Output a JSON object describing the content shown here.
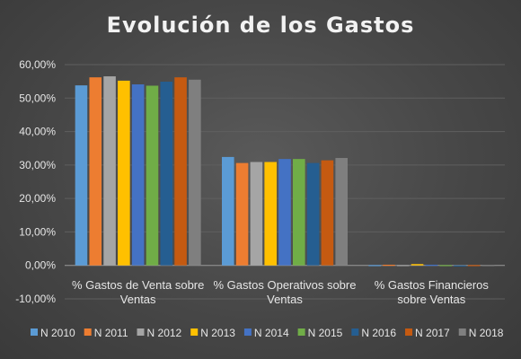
{
  "chart_data": {
    "type": "bar",
    "title": "Evolución de los Gastos",
    "xlabel": "",
    "ylabel": "",
    "ylim": [
      -0.1,
      0.6
    ],
    "y_ticks": [
      "-10,00%",
      "0,00%",
      "10,00%",
      "20,00%",
      "30,00%",
      "40,00%",
      "50,00%",
      "60,00%"
    ],
    "grid": true,
    "legend_position": "bottom",
    "categories": [
      [
        "%  Gastos de Venta sobre",
        "Ventas"
      ],
      [
        "%  Gastos Operativos sobre",
        "Ventas"
      ],
      [
        "%  Gastos Financieros",
        "sobre Ventas"
      ]
    ],
    "series": [
      {
        "name": "N 2010",
        "color": "#5b9bd5",
        "values": [
          0.538,
          0.324,
          0.001
        ]
      },
      {
        "name": "N 2011",
        "color": "#ed7d31",
        "values": [
          0.562,
          0.306,
          0.002
        ]
      },
      {
        "name": "N 2012",
        "color": "#a5a5a5",
        "values": [
          0.565,
          0.309,
          0.001
        ]
      },
      {
        "name": "N 2013",
        "color": "#ffc000",
        "values": [
          0.552,
          0.309,
          0.004
        ]
      },
      {
        "name": "N 2014",
        "color": "#4472c4",
        "values": [
          0.541,
          0.318,
          0.002
        ]
      },
      {
        "name": "N 2015",
        "color": "#70ad47",
        "values": [
          0.537,
          0.318,
          0.001
        ]
      },
      {
        "name": "N 2016",
        "color": "#255e91",
        "values": [
          0.549,
          0.306,
          -0.002
        ]
      },
      {
        "name": "N 2017",
        "color": "#c55a11",
        "values": [
          0.562,
          0.314,
          0.001
        ]
      },
      {
        "name": "N 2018",
        "color": "#7f7f7f",
        "values": [
          0.555,
          0.321,
          0.001
        ]
      }
    ]
  }
}
